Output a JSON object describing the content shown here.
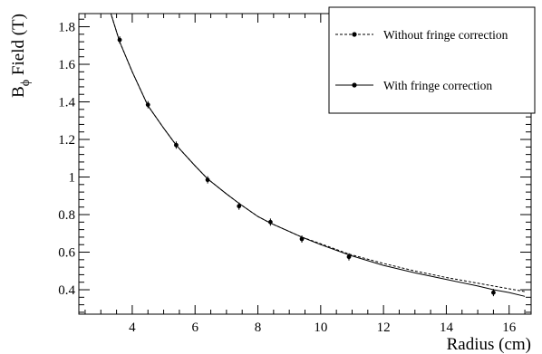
{
  "chart_data": {
    "type": "line",
    "xlabel": "Radius (cm)",
    "ylabel": {
      "base": "B",
      "subscript": "ϕ",
      "rest": " Field (T)"
    },
    "xlim": [
      2.3,
      16.7
    ],
    "ylim": [
      0.27,
      1.87
    ],
    "xticks": [
      4,
      6,
      8,
      10,
      12,
      14,
      16
    ],
    "yticks": [
      0.4,
      0.6,
      0.8,
      1,
      1.2,
      1.4,
      1.6,
      1.8
    ],
    "xtick_labels": [
      "4",
      "6",
      "8",
      "10",
      "12",
      "14",
      "16"
    ],
    "ytick_labels": [
      "0.4",
      "0.6",
      "0.8",
      "1",
      "1.2",
      "1.4",
      "1.6",
      "1.8"
    ],
    "legend_position": "top-right",
    "grid": false,
    "series": [
      {
        "name": "Without fringe correction",
        "style": "dashed",
        "color": "#000000",
        "x": [
          3.3,
          3.6,
          4.0,
          4.5,
          5.0,
          5.4,
          6.0,
          6.4,
          7.0,
          7.4,
          8.0,
          8.4,
          9.0,
          9.4,
          10.0,
          10.9,
          12.0,
          13.0,
          14.0,
          15.0,
          15.5,
          16.0,
          16.5
        ],
        "y": [
          1.88,
          1.72,
          1.56,
          1.38,
          1.26,
          1.17,
          1.06,
          0.99,
          0.91,
          0.86,
          0.79,
          0.755,
          0.71,
          0.68,
          0.645,
          0.59,
          0.54,
          0.5,
          0.465,
          0.435,
          0.42,
          0.405,
          0.39
        ]
      },
      {
        "name": "With fringe correction",
        "style": "solid",
        "color": "#000000",
        "x": [
          3.3,
          3.6,
          4.0,
          4.5,
          5.0,
          5.4,
          6.0,
          6.4,
          7.0,
          7.4,
          8.0,
          8.4,
          9.0,
          9.4,
          10.0,
          10.9,
          12.0,
          13.0,
          14.0,
          15.0,
          15.5,
          16.0,
          16.5
        ],
        "y": [
          1.88,
          1.72,
          1.56,
          1.38,
          1.26,
          1.17,
          1.06,
          0.99,
          0.91,
          0.86,
          0.79,
          0.755,
          0.71,
          0.68,
          0.64,
          0.585,
          0.53,
          0.49,
          0.455,
          0.42,
          0.4,
          0.385,
          0.365
        ]
      }
    ],
    "markers": {
      "x": [
        3.6,
        4.5,
        5.4,
        6.4,
        7.4,
        8.4,
        9.4,
        10.9,
        15.5
      ],
      "y": [
        1.73,
        1.385,
        1.17,
        0.985,
        0.845,
        0.76,
        0.67,
        0.575,
        0.385
      ]
    }
  }
}
